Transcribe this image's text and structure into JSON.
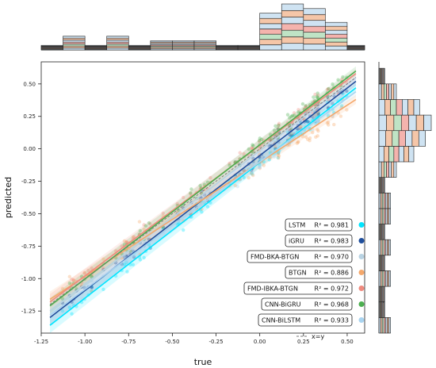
{
  "chart_data": {
    "type": "scatter",
    "xlabel": "true",
    "ylabel": "predicted",
    "xlim": [
      -1.25,
      0.6
    ],
    "ylim": [
      -1.42,
      0.67
    ],
    "xticks": [
      "-1.25",
      "-1.00",
      "-0.75",
      "-0.50",
      "-0.25",
      "0.00",
      "0.25",
      "0.50"
    ],
    "yticks": [
      "-1.25",
      "-1.00",
      "-0.75",
      "-0.50",
      "-0.25",
      "0.00",
      "0.25",
      "0.50"
    ],
    "grid": false,
    "legend_position": "bottom-right",
    "series": [
      {
        "name": "LSTM",
        "r2_label": "R² = 0.981",
        "color": "#00e5ff",
        "fit": [
          [
            -1.2,
            -1.36
          ],
          [
            0.55,
            0.47
          ]
        ]
      },
      {
        "name": "iGRU",
        "r2_label": "R² = 0.983",
        "color": "#1f4e9c",
        "fit": [
          [
            -1.2,
            -1.3
          ],
          [
            0.55,
            0.52
          ]
        ]
      },
      {
        "name": "FMD-BKA-BTGN",
        "r2_label": "R² = 0.970",
        "color": "#b9d3e3",
        "fit": [
          [
            -1.2,
            -1.25
          ],
          [
            0.55,
            0.55
          ]
        ]
      },
      {
        "name": "BTGN",
        "r2_label": "R² = 0.886",
        "color": "#f5a86b",
        "fit": [
          [
            -1.2,
            -1.16
          ],
          [
            0.55,
            0.38
          ]
        ]
      },
      {
        "name": "FMD-IBKA-BTGN",
        "r2_label": "R² = 0.972",
        "color": "#f08a7e",
        "fit": [
          [
            -1.2,
            -1.18
          ],
          [
            0.55,
            0.58
          ]
        ]
      },
      {
        "name": "CNN-BiGRU",
        "r2_label": "R² = 0.968",
        "color": "#4caf50",
        "fit": [
          [
            -1.2,
            -1.21
          ],
          [
            0.55,
            0.6
          ]
        ]
      },
      {
        "name": "CNN-BiLSTM",
        "r2_label": "R² = 0.933",
        "color": "#a9d4f0",
        "fit": [
          [
            -1.2,
            -1.28
          ],
          [
            0.55,
            0.44
          ]
        ]
      }
    ],
    "reference_line": {
      "label": "x=y",
      "points": [
        [
          -1.2,
          -1.2
        ],
        [
          0.55,
          0.55
        ]
      ]
    },
    "top_histogram": {
      "bins": [
        -1.25,
        -1.125,
        -1.0,
        -0.875,
        -0.75,
        -0.625,
        -0.5,
        -0.375,
        -0.25,
        -0.125,
        0.0,
        0.125,
        0.25,
        0.375,
        0.5,
        0.6
      ],
      "counts": [
        1,
        3,
        1,
        3,
        1,
        2,
        2,
        2,
        1,
        1,
        8,
        10,
        9,
        6,
        1
      ]
    },
    "right_histogram": {
      "bins": [
        -1.42,
        -1.3,
        -1.18,
        -1.06,
        -0.94,
        -0.82,
        -0.7,
        -0.58,
        -0.46,
        -0.34,
        -0.22,
        -0.1,
        0.02,
        0.14,
        0.26,
        0.38,
        0.5,
        0.62
      ],
      "counts": [
        2,
        1,
        1,
        2,
        1,
        2,
        1,
        2,
        2,
        1,
        3,
        6,
        8,
        9,
        7,
        3,
        1
      ]
    }
  }
}
